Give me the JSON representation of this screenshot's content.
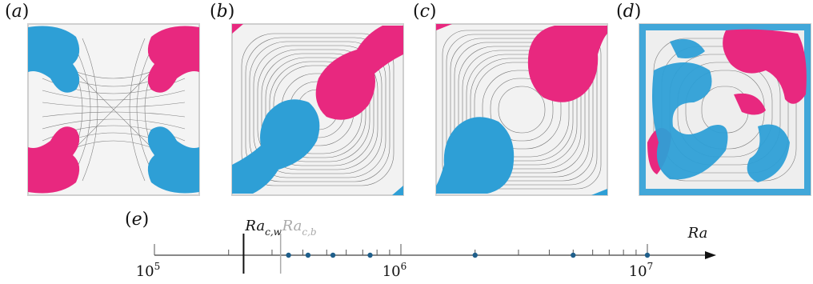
{
  "panels": [
    {
      "label": "a"
    },
    {
      "label": "b"
    },
    {
      "label": "c"
    },
    {
      "label": "d"
    }
  ],
  "colors": {
    "hot": "#e8287f",
    "cold": "#2e9fd6",
    "streamline": "#222222",
    "axis": "#111111",
    "threshold_b": "#aaaaaa",
    "dot": "#1f5f8b"
  },
  "scale": {
    "panel_label": "e",
    "axis_label": "Ra",
    "tick_labels": [
      {
        "base": "10",
        "exp": "5"
      },
      {
        "base": "10",
        "exp": "6"
      },
      {
        "base": "10",
        "exp": "7"
      }
    ],
    "thresholds": [
      {
        "base": "Ra",
        "sub": "c,w",
        "value": 230000
      },
      {
        "base": "Ra",
        "sub": "c,b",
        "value": 325000
      }
    ],
    "dots": [
      350000,
      420000,
      530000,
      750000,
      2000000,
      5000000,
      10000000
    ],
    "log_range": [
      100000,
      25000000
    ]
  }
}
